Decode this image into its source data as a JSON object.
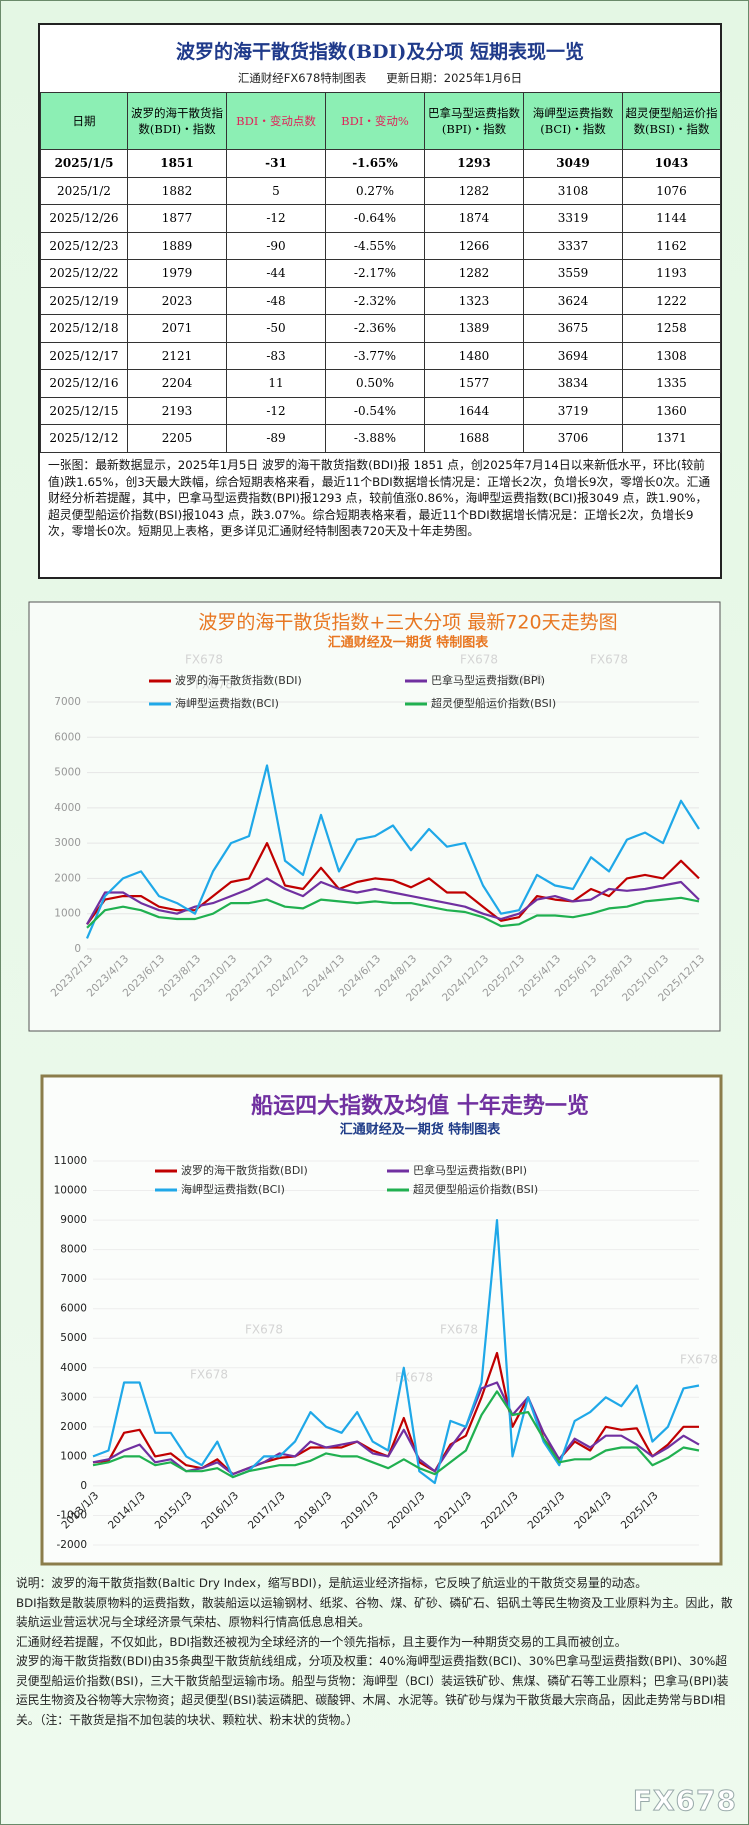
{
  "header": {
    "title": "波罗的海干散货指数(BDI)及分项  短期表现一览",
    "source": "汇通财经FX678特制图表",
    "updated": "更新日期：2025年1月6日"
  },
  "table": {
    "columns": [
      "日期",
      "波罗的海干散货指数(BDI)・指数",
      "BDI・变动点数",
      "BDI・变动%",
      "巴拿马型运费指数(BPI)・指数",
      "海岬型运费指数(BCI)・指数",
      "超灵便型船运价指数(BSI)・指数"
    ],
    "rows": [
      [
        "2025/1/5",
        "1851",
        "-31",
        "-1.65%",
        "1293",
        "3049",
        "1043"
      ],
      [
        "2025/1/2",
        "1882",
        "5",
        "0.27%",
        "1282",
        "3108",
        "1076"
      ],
      [
        "2025/12/26",
        "1877",
        "-12",
        "-0.64%",
        "1874",
        "3319",
        "1144"
      ],
      [
        "2025/12/23",
        "1889",
        "-90",
        "-4.55%",
        "1266",
        "3337",
        "1162"
      ],
      [
        "2025/12/22",
        "1979",
        "-44",
        "-2.17%",
        "1282",
        "3559",
        "1193"
      ],
      [
        "2025/12/19",
        "2023",
        "-48",
        "-2.32%",
        "1323",
        "3624",
        "1222"
      ],
      [
        "2025/12/18",
        "2071",
        "-50",
        "-2.36%",
        "1389",
        "3675",
        "1258"
      ],
      [
        "2025/12/17",
        "2121",
        "-83",
        "-3.77%",
        "1480",
        "3694",
        "1308"
      ],
      [
        "2025/12/16",
        "2204",
        "11",
        "0.50%",
        "1577",
        "3834",
        "1335"
      ],
      [
        "2025/12/15",
        "2193",
        "-12",
        "-0.54%",
        "1644",
        "3719",
        "1360"
      ],
      [
        "2025/12/12",
        "2205",
        "-89",
        "-3.88%",
        "1688",
        "3706",
        "1371"
      ]
    ]
  },
  "summary": "一张图：最新数据显示，2025年1月5日 波罗的海干散货指数(BDI)报 1851 点，创2025年7月14日以来新低水平，环比(较前值)跌1.65%，创3天最大跌幅，综合短期表格来看，最近11个BDI数据增长情况是：正增长2次，负增长9次，零增长0次。汇通财经分析若提醒，其中，巴拿马型运费指数(BPI)报1293 点，较前值涨0.86%，海岬型运费指数(BCI)报3049 点，跌1.90%，超灵便型船运价指数(BSI)报1043 点，跌3.07%。综合短期表格来看，最近11个BDI数据增长情况是：正增长2次，负增长9次，零增长0次。短期见上表格，更多详见汇通财经特制图表720天及十年走势图。",
  "chart_data": [
    {
      "type": "line",
      "title": "波罗的海干散货指数+三大分项  最新720天走势图",
      "subtitle": "汇通财经及一期货  特制图表",
      "categories": [
        "2023/2/13",
        null,
        "2023/4/13",
        null,
        "2023/6/13",
        null,
        "2023/8/13",
        null,
        "2023/10/13",
        null,
        "2023/12/13",
        null,
        "2024/2/13",
        null,
        "2024/4/13",
        null,
        "2024/6/13",
        null,
        "2024/8/13",
        null,
        "2024/10/13",
        null,
        "2024/12/13",
        null,
        "2025/2/13",
        null,
        "2025/4/13",
        null,
        "2025/6/13",
        null,
        "2025/8/13",
        null,
        "2025/10/13",
        null,
        "2025/12/13"
      ],
      "series": [
        {
          "name": "波罗的海干散货指数(BDI)",
          "color": "#c00000",
          "values": [
            700,
            1400,
            1500,
            1500,
            1200,
            1100,
            1100,
            1500,
            1900,
            2000,
            3000,
            1800,
            1700,
            2300,
            1700,
            1900,
            2000,
            1950,
            1750,
            2000,
            1600,
            1600,
            1200,
            800,
            900,
            1500,
            1400,
            1350,
            1700,
            1500,
            2000,
            2100,
            2000,
            2500,
            2000
          ]
        },
        {
          "name": "巴拿马型运费指数(BPI)",
          "color": "#7030a0",
          "values": [
            700,
            1600,
            1600,
            1300,
            1100,
            1000,
            1200,
            1300,
            1500,
            1700,
            2000,
            1700,
            1500,
            1900,
            1700,
            1600,
            1700,
            1600,
            1500,
            1400,
            1300,
            1200,
            1000,
            850,
            1000,
            1400,
            1500,
            1350,
            1400,
            1700,
            1650,
            1700,
            1800,
            1900,
            1400
          ]
        },
        {
          "name": "海岬型运费指数(BCI)",
          "color": "#1fa8e8",
          "values": [
            300,
            1500,
            2000,
            2200,
            1500,
            1300,
            1000,
            2200,
            3000,
            3200,
            5200,
            2500,
            2100,
            3800,
            2200,
            3100,
            3200,
            3500,
            2800,
            3400,
            2900,
            3000,
            1800,
            1000,
            1100,
            2100,
            1800,
            1700,
            2600,
            2200,
            3100,
            3300,
            3000,
            4200,
            3400
          ]
        },
        {
          "name": "超灵便型船运价指数(BSI)",
          "color": "#20b050",
          "values": [
            600,
            1100,
            1200,
            1100,
            900,
            850,
            850,
            1000,
            1300,
            1300,
            1400,
            1200,
            1150,
            1400,
            1350,
            1300,
            1350,
            1300,
            1300,
            1200,
            1100,
            1050,
            900,
            650,
            700,
            950,
            950,
            900,
            1000,
            1150,
            1200,
            1350,
            1400,
            1450,
            1350
          ]
        }
      ],
      "ylim": [
        0,
        7000
      ],
      "yticks": [
        0,
        1000,
        2000,
        3000,
        4000,
        5000,
        6000,
        7000
      ],
      "grid": true,
      "legend": "top"
    },
    {
      "type": "line",
      "title": "船运四大指数及均值 十年走势一览",
      "subtitle": "汇通财经及一期货 特制图表",
      "categories": [
        "2013/1/3",
        null,
        null,
        "2014/1/3",
        null,
        null,
        "2015/1/3",
        null,
        null,
        "2016/1/3",
        null,
        null,
        "2017/1/3",
        null,
        null,
        "2018/1/3",
        null,
        null,
        "2019/1/3",
        null,
        null,
        "2020/1/3",
        null,
        null,
        "2021/1/3",
        null,
        null,
        "2022/1/3",
        null,
        null,
        "2023/1/3",
        null,
        null,
        "2024/1/3",
        null,
        null,
        "2025/1/3",
        null,
        null,
        null
      ],
      "series": [
        {
          "name": "波罗的海干散货指数(BDI)",
          "color": "#c00000",
          "values": [
            800,
            850,
            1800,
            1900,
            1000,
            1100,
            700,
            600,
            900,
            400,
            600,
            800,
            950,
            1000,
            1300,
            1300,
            1300,
            1500,
            1200,
            1000,
            2300,
            800,
            500,
            1400,
            1700,
            3000,
            4500,
            2000,
            3000,
            1600,
            900,
            1500,
            1200,
            2000,
            1900,
            1950,
            1000,
            1400,
            2000,
            2000
          ]
        },
        {
          "name": "巴拿马型运费指数(BPI)",
          "color": "#7030a0",
          "values": [
            800,
            900,
            1200,
            1400,
            800,
            900,
            500,
            600,
            800,
            400,
            600,
            800,
            1100,
            1000,
            1500,
            1300,
            1400,
            1500,
            1100,
            1000,
            1900,
            900,
            500,
            1300,
            2000,
            3300,
            3500,
            2400,
            3000,
            1800,
            900,
            1600,
            1300,
            1700,
            1700,
            1400,
            1000,
            1300,
            1700,
            1400
          ]
        },
        {
          "name": "海岬型运费指数(BCI)",
          "color": "#1fa8e8",
          "values": [
            1000,
            1200,
            3500,
            3500,
            1800,
            1800,
            1000,
            700,
            1500,
            300,
            500,
            1000,
            1000,
            1500,
            2500,
            2000,
            1800,
            2500,
            1500,
            1200,
            4000,
            500,
            100,
            2200,
            2000,
            3500,
            9000,
            1000,
            3000,
            1500,
            700,
            2200,
            2500,
            3000,
            2700,
            3400,
            1500,
            2000,
            3300,
            3400
          ]
        },
        {
          "name": "超灵便型船运价指数(BSI)",
          "color": "#20b050",
          "values": [
            700,
            800,
            1000,
            1000,
            700,
            800,
            500,
            500,
            600,
            300,
            500,
            600,
            700,
            700,
            850,
            1100,
            1000,
            1000,
            800,
            600,
            900,
            600,
            400,
            800,
            1200,
            2400,
            3200,
            2400,
            2500,
            1600,
            800,
            900,
            900,
            1200,
            1300,
            1300,
            700,
            950,
            1300,
            1200
          ]
        }
      ],
      "ylim": [
        -2000,
        11000
      ],
      "yticks": [
        -2000,
        -1000,
        0,
        1000,
        2000,
        3000,
        4000,
        5000,
        6000,
        7000,
        8000,
        9000,
        10000,
        11000
      ],
      "grid": true,
      "legend": "top"
    }
  ],
  "notes": [
    "说明：波罗的海干散货指数(Baltic Dry Index，缩写BDI)，是航运业经济指标，它反映了航运业的干散货交易量的动态。",
    "BDI指数是散装原物料的运费指数，散装船运以运输钢材、纸浆、谷物、煤、矿砂、磷矿石、铝矾土等民生物资及工业原料为主。因此，散装航运业营运状况与全球经济景气荣枯、原物料行情高低息息相关。",
    "汇通财经若提醒，不仅如此，BDI指数还被视为全球经济的一个领先指标，且主要作为一种期货交易的工具而被创立。",
    "波罗的海干散货指数(BDI)由35条典型干散货航线组成，分项及权重：40%海岬型运费指数(BCI)、30%巴拿马型运费指数(BPI)、30%超灵便型船运价指数(BSI)，三大干散货船型运输市场。船型与货物：海岬型（BCI）装运铁矿砂、焦煤、磷矿石等工业原料；巴拿马(BPI)装运民生物资及谷物等大宗物资；超灵便型(BSI)装运磷肥、碳酸钾、木屑、水泥等。铁矿砂与煤为干散货最大宗商品，因此走势常与BDI相关。（注：干散货是指不加包装的块状、颗粒状、粉末状的货物。）"
  ],
  "watermark": "FX678"
}
